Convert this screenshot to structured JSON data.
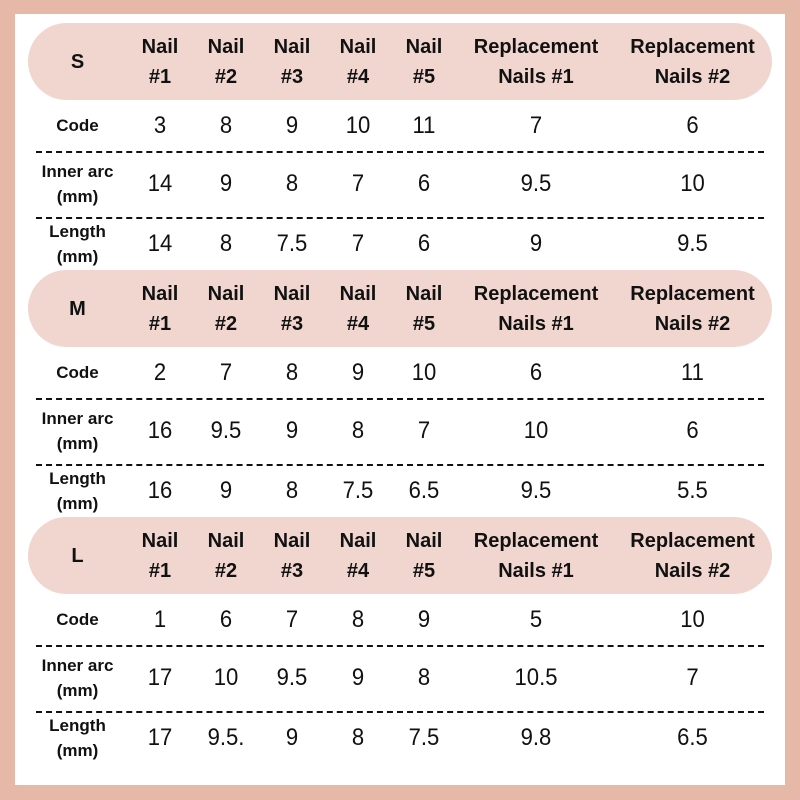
{
  "colors": {
    "border": "#e5b8a8",
    "header_pill": "#f0d6cf"
  },
  "columns": [
    "Nail\n#1",
    "Nail\n#2",
    "Nail\n#3",
    "Nail\n#4",
    "Nail\n#5",
    "Replacement\nNails #1",
    "Replacement\nNails #2"
  ],
  "row_labels": {
    "code": "Code",
    "inner_arc": "Inner arc\n(mm)",
    "length": "Length\n(mm)"
  },
  "sections": [
    {
      "size": "S",
      "code": [
        "3",
        "8",
        "9",
        "10",
        "11",
        "7",
        "6"
      ],
      "inner_arc": [
        "14",
        "9",
        "8",
        "7",
        "6",
        "9.5",
        "10"
      ],
      "length": [
        "14",
        "8",
        "7.5",
        "7",
        "6",
        "9",
        "9.5"
      ]
    },
    {
      "size": "M",
      "code": [
        "2",
        "7",
        "8",
        "9",
        "10",
        "6",
        "11"
      ],
      "inner_arc": [
        "16",
        "9.5",
        "9",
        "8",
        "7",
        "10",
        "6"
      ],
      "length": [
        "16",
        "9",
        "8",
        "7.5",
        "6.5",
        "9.5",
        "5.5"
      ]
    },
    {
      "size": "L",
      "code": [
        "1",
        "6",
        "7",
        "8",
        "9",
        "5",
        "10"
      ],
      "inner_arc": [
        "17",
        "10",
        "9.5",
        "9",
        "8",
        "10.5",
        "7"
      ],
      "length": [
        "17",
        "9.5.",
        "9",
        "8",
        "7.5",
        "9.8",
        "6.5"
      ]
    }
  ]
}
